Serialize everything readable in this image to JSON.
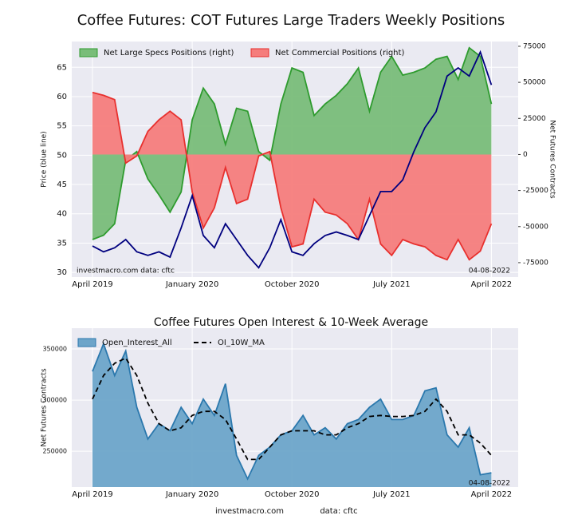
{
  "chart_data": [
    {
      "type": "line",
      "title": "Coffee Futures: COT Futures Large Traders Weekly Positions",
      "ylabel": "Price (blue line)",
      "y2label": "Net Futures Contracts",
      "annotations": [
        "investmacro.com   data: cftc",
        "04-08-2022"
      ],
      "x": [
        "2019-04",
        "2019-05",
        "2019-06",
        "2019-07",
        "2019-08",
        "2019-09",
        "2019-10",
        "2019-11",
        "2019-12",
        "2020-01",
        "2020-02",
        "2020-03",
        "2020-04",
        "2020-05",
        "2020-06",
        "2020-07",
        "2020-08",
        "2020-09",
        "2020-10",
        "2020-11",
        "2020-12",
        "2021-01",
        "2021-02",
        "2021-03",
        "2021-04",
        "2021-05",
        "2021-06",
        "2021-07",
        "2021-08",
        "2021-09",
        "2021-10",
        "2021-11",
        "2021-12",
        "2022-01",
        "2022-02",
        "2022-03",
        "2022-04"
      ],
      "xticks": [
        {
          "value": "2019-04",
          "label": "April 2019"
        },
        {
          "value": "2020-01",
          "label": "January 2020"
        },
        {
          "value": "2020-10",
          "label": "October 2020"
        },
        {
          "value": "2021-07",
          "label": "July 2021"
        },
        {
          "value": "2022-04",
          "label": "April 2022"
        }
      ],
      "ylim": [
        29.2,
        69.4
      ],
      "yticks": [
        30,
        35,
        40,
        45,
        50,
        55,
        60,
        65
      ],
      "y2lim": [
        -85000,
        78300
      ],
      "y2ticks": [
        -75000,
        -50000,
        -25000,
        0,
        25000,
        50000,
        75000
      ],
      "grid": true,
      "legend": "upper left",
      "series": [
        {
          "name": "Net Large Specs Positions (right)",
          "axis": "y2",
          "style": "area",
          "color": "#2e9b2e",
          "fill": "#79bd79",
          "values": [
            -59000,
            -56000,
            -48000,
            -4000,
            2000,
            -17000,
            -28000,
            -40000,
            -26000,
            24000,
            46000,
            35000,
            7000,
            32000,
            30000,
            2000,
            -4000,
            35000,
            60000,
            57000,
            27000,
            35000,
            41000,
            49000,
            60000,
            30000,
            57000,
            68000,
            55000,
            57000,
            60000,
            66000,
            68000,
            52000,
            74000,
            68000,
            35000
          ]
        },
        {
          "name": "Net Commercial Positions (right)",
          "axis": "y2",
          "style": "area",
          "color": "#e8302e",
          "fill": "#f57d7c",
          "values": [
            43000,
            41000,
            38000,
            -6000,
            -1000,
            16000,
            24000,
            30000,
            24000,
            -26000,
            -51000,
            -37000,
            -9000,
            -34000,
            -31000,
            -1000,
            2000,
            -37000,
            -64000,
            -62000,
            -31000,
            -40000,
            -42000,
            -48000,
            -59000,
            -31000,
            -62000,
            -70000,
            -59000,
            -62000,
            -64000,
            -70000,
            -73000,
            -59000,
            -73000,
            -67000,
            -48000
          ]
        },
        {
          "axis": "y",
          "style": "line",
          "color": "#00007f",
          "values": [
            34.5,
            33.5,
            34.2,
            35.6,
            33.5,
            32.9,
            33.5,
            32.6,
            37.6,
            43.1,
            36.3,
            34.2,
            38.3,
            35.6,
            32.9,
            30.8,
            34.2,
            39.0,
            33.5,
            32.9,
            34.9,
            36.3,
            36.9,
            36.3,
            35.6,
            39.7,
            43.8,
            43.8,
            45.8,
            50.6,
            54.7,
            57.4,
            63.5,
            64.9,
            63.5,
            67.6,
            62.0
          ]
        }
      ]
    },
    {
      "type": "line",
      "title": "Coffee Futures Open Interest & 10-Week Average",
      "ylabel": "Net Futures Contracts",
      "annotations": [
        "04-08-2022"
      ],
      "x": [
        "2019-04",
        "2019-05",
        "2019-06",
        "2019-07",
        "2019-08",
        "2019-09",
        "2019-10",
        "2019-11",
        "2019-12",
        "2020-01",
        "2020-02",
        "2020-03",
        "2020-04",
        "2020-05",
        "2020-06",
        "2020-07",
        "2020-08",
        "2020-09",
        "2020-10",
        "2020-11",
        "2020-12",
        "2021-01",
        "2021-02",
        "2021-03",
        "2021-04",
        "2021-05",
        "2021-06",
        "2021-07",
        "2021-08",
        "2021-09",
        "2021-10",
        "2021-11",
        "2021-12",
        "2022-01",
        "2022-02",
        "2022-03",
        "2022-04"
      ],
      "xticks": [
        {
          "value": "2019-04",
          "label": "April 2019"
        },
        {
          "value": "2020-01",
          "label": "January 2020"
        },
        {
          "value": "2020-10",
          "label": "October 2020"
        },
        {
          "value": "2021-07",
          "label": "July 2021"
        },
        {
          "value": "2022-04",
          "label": "April 2022"
        }
      ],
      "ylim": [
        215000,
        370300
      ],
      "yticks": [
        250000,
        300000,
        350000
      ],
      "grid": true,
      "legend": "upper left",
      "series": [
        {
          "name": "Open_Interest_All",
          "style": "area",
          "color": "#2b78ad",
          "fill": "#6da5c9",
          "values": [
            328000,
            355000,
            324000,
            348000,
            293000,
            262000,
            277000,
            270000,
            293000,
            277000,
            301000,
            285000,
            316000,
            246000,
            223000,
            246000,
            254000,
            266000,
            270000,
            285000,
            266000,
            273000,
            262000,
            277000,
            281000,
            293000,
            301000,
            281000,
            281000,
            285000,
            309000,
            312000,
            266000,
            254000,
            273000,
            227000,
            229000
          ]
        },
        {
          "name": "OI_10W_MA",
          "style": "line",
          "dash": true,
          "color": "#000000",
          "values": [
            301000,
            324000,
            336000,
            341000,
            324000,
            297000,
            277000,
            270000,
            273000,
            285000,
            289000,
            289000,
            281000,
            262000,
            242000,
            242000,
            254000,
            266000,
            270000,
            270000,
            270000,
            266000,
            266000,
            273000,
            277000,
            284000,
            285000,
            284000,
            284000,
            285000,
            289000,
            301000,
            289000,
            266000,
            266000,
            258000,
            246000
          ]
        }
      ]
    }
  ],
  "footer": {
    "site": "investmacro.com",
    "source": "data: cftc"
  }
}
